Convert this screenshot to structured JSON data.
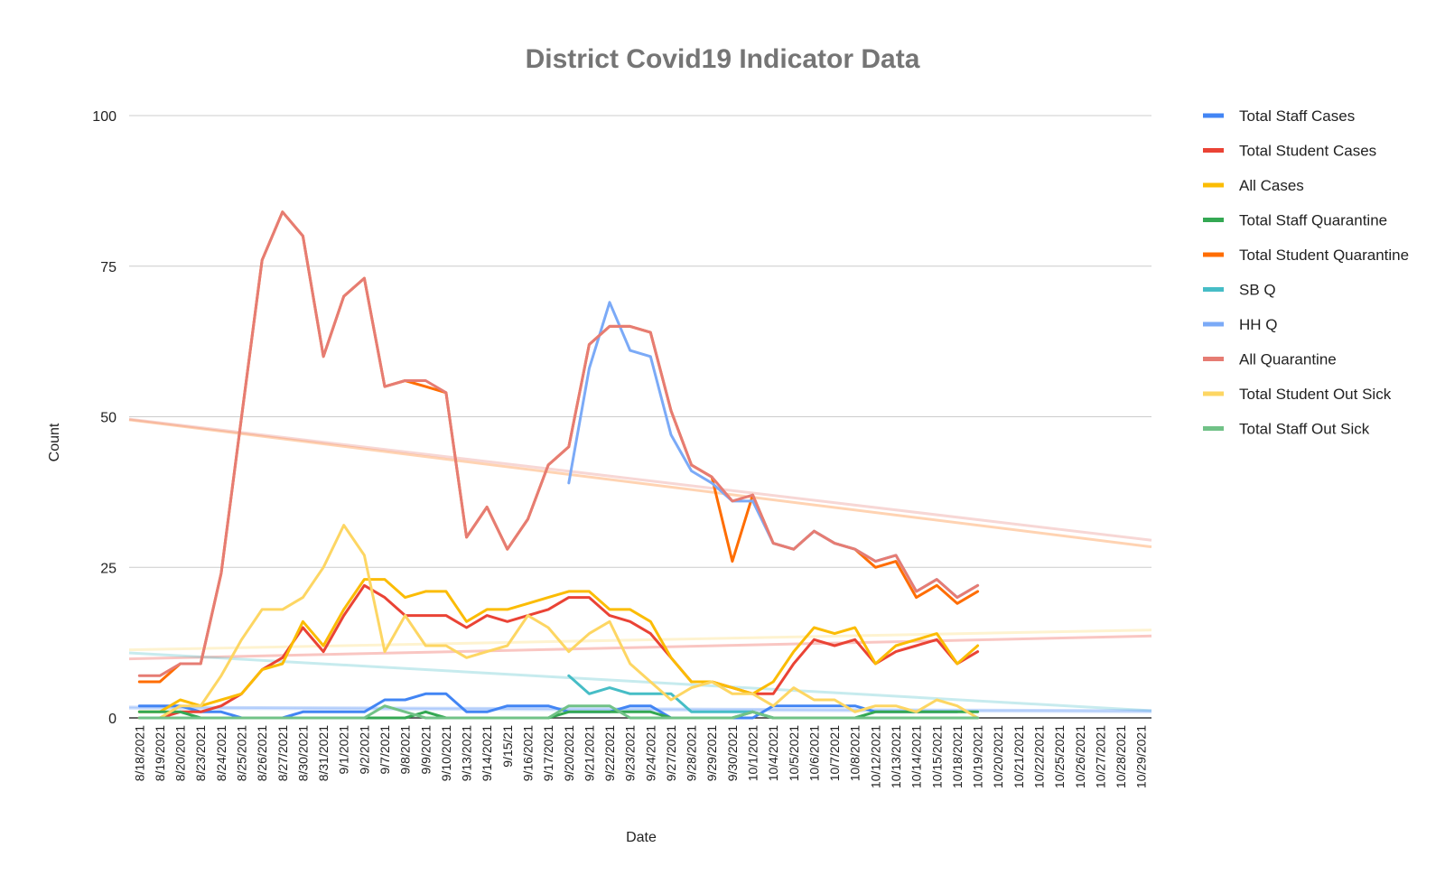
{
  "chart_data": {
    "type": "line",
    "title": "District Covid19 Indicator Data",
    "xlabel": "Date",
    "ylabel": "Count",
    "ylim": [
      0,
      100
    ],
    "yticks": [
      0,
      25,
      50,
      75,
      100
    ],
    "grid": true,
    "legend_position": "right",
    "categories": [
      "8/18/2021",
      "8/19/2021",
      "8/20/2021",
      "8/23/2021",
      "8/24/2021",
      "8/25/2021",
      "8/26/2021",
      "8/27/2021",
      "8/30/2021",
      "8/31/2021",
      "9/1/2021",
      "9/2/2021",
      "9/7/2021",
      "9/8/2021",
      "9/9/2021",
      "9/10/2021",
      "9/13/2021",
      "9/14/2021",
      "9/15/21",
      "9/16/2021",
      "9/17/2021",
      "9/20/2021",
      "9/21/2021",
      "9/22/2021",
      "9/23/2021",
      "9/24/2021",
      "9/27/2021",
      "9/28/2021",
      "9/29/2021",
      "9/30/2021",
      "10/1/2021",
      "10/4/2021",
      "10/5/2021",
      "10/6/2021",
      "10/7/2021",
      "10/8/2021",
      "10/12/2021",
      "10/13/2021",
      "10/14/2021",
      "10/15/2021",
      "10/18/2021",
      "10/19/2021",
      "10/20/2021",
      "10/21/2021",
      "10/22/2021",
      "10/25/2021",
      "10/26/2021",
      "10/27/2021",
      "10/28/2021",
      "10/29/2021"
    ],
    "series": [
      {
        "name": "Total Staff Cases",
        "color": "#4285f4",
        "values": [
          2,
          2,
          2,
          1,
          1,
          0,
          0,
          0,
          1,
          1,
          1,
          1,
          3,
          3,
          4,
          4,
          1,
          1,
          2,
          2,
          2,
          1,
          1,
          1,
          2,
          2,
          0,
          0,
          0,
          0,
          0,
          2,
          2,
          2,
          2,
          2,
          1,
          1,
          1,
          1,
          1,
          null,
          null,
          null,
          null,
          null,
          null,
          null,
          null,
          null
        ]
      },
      {
        "name": "Total Student Cases",
        "color": "#ea4335",
        "values": [
          0,
          0,
          1,
          1,
          2,
          4,
          8,
          10,
          15,
          11,
          17,
          22,
          20,
          17,
          17,
          17,
          15,
          17,
          16,
          17,
          18,
          20,
          20,
          17,
          16,
          14,
          10,
          6,
          6,
          5,
          4,
          4,
          9,
          13,
          12,
          13,
          9,
          11,
          12,
          13,
          9,
          11,
          null,
          null,
          null,
          null,
          null,
          null,
          null,
          null
        ]
      },
      {
        "name": "All Cases",
        "color": "#fbbc04",
        "values": [
          1,
          1,
          3,
          2,
          3,
          4,
          8,
          9,
          16,
          12,
          18,
          23,
          23,
          20,
          21,
          21,
          16,
          18,
          18,
          19,
          20,
          21,
          21,
          18,
          18,
          16,
          10,
          6,
          6,
          5,
          4,
          6,
          11,
          15,
          14,
          15,
          9,
          12,
          13,
          14,
          9,
          12,
          null,
          null,
          null,
          null,
          null,
          null,
          null,
          null
        ]
      },
      {
        "name": "Total Staff Quarantine",
        "color": "#34a853",
        "values": [
          1,
          1,
          1,
          0,
          0,
          0,
          0,
          0,
          0,
          0,
          0,
          0,
          0,
          0,
          1,
          0,
          0,
          0,
          0,
          0,
          0,
          1,
          1,
          1,
          1,
          1,
          0,
          0,
          0,
          0,
          1,
          0,
          0,
          0,
          0,
          0,
          1,
          1,
          1,
          1,
          1,
          1,
          null,
          null,
          null,
          null,
          null,
          null,
          null,
          null
        ]
      },
      {
        "name": "Total Student Quarantine",
        "color": "#ff6d01",
        "values": [
          6,
          6,
          9,
          9,
          24,
          50,
          76,
          84,
          80,
          60,
          70,
          73,
          55,
          56,
          55,
          54,
          30,
          35,
          28,
          33,
          42,
          45,
          62,
          65,
          65,
          64,
          51,
          42,
          40,
          26,
          37,
          29,
          28,
          31,
          29,
          28,
          25,
          26,
          20,
          22,
          19,
          21,
          null,
          null,
          null,
          null,
          null,
          null,
          null,
          null
        ]
      },
      {
        "name": "SB Q",
        "color": "#46bdc6",
        "values": [
          null,
          null,
          null,
          null,
          null,
          null,
          null,
          null,
          null,
          null,
          null,
          null,
          null,
          null,
          null,
          null,
          null,
          null,
          null,
          null,
          null,
          7,
          4,
          5,
          4,
          4,
          4,
          1,
          1,
          1,
          1,
          0,
          0,
          0,
          0,
          0,
          0,
          0,
          0,
          0,
          0,
          0,
          null,
          null,
          null,
          null,
          null,
          null,
          null,
          null
        ]
      },
      {
        "name": "HH Q",
        "color": "#7baaf7",
        "values": [
          null,
          null,
          null,
          null,
          null,
          null,
          null,
          null,
          null,
          null,
          null,
          null,
          null,
          null,
          null,
          null,
          null,
          null,
          null,
          null,
          null,
          39,
          58,
          69,
          61,
          60,
          47,
          41,
          39,
          36,
          36,
          29,
          28,
          31,
          29,
          28,
          26,
          27,
          21,
          23,
          20,
          22,
          null,
          null,
          null,
          null,
          null,
          null,
          null,
          null
        ]
      },
      {
        "name": "All Quarantine",
        "color": "#e67c73",
        "values": [
          7,
          7,
          9,
          9,
          24,
          50,
          76,
          84,
          80,
          60,
          70,
          73,
          55,
          56,
          56,
          54,
          30,
          35,
          28,
          33,
          42,
          45,
          62,
          65,
          65,
          64,
          51,
          42,
          40,
          36,
          37,
          29,
          28,
          31,
          29,
          28,
          26,
          27,
          21,
          23,
          20,
          22,
          null,
          null,
          null,
          null,
          null,
          null,
          null,
          null
        ]
      },
      {
        "name": "Total Student Out Sick",
        "color": "#fdd663",
        "values": [
          0,
          0,
          2,
          2,
          7,
          13,
          18,
          18,
          20,
          25,
          32,
          27,
          11,
          17,
          12,
          12,
          10,
          11,
          12,
          17,
          15,
          11,
          14,
          16,
          9,
          6,
          3,
          5,
          6,
          4,
          4,
          2,
          5,
          3,
          3,
          1,
          2,
          2,
          1,
          3,
          2,
          0,
          null,
          null,
          null,
          null,
          null,
          null,
          null,
          null
        ]
      },
      {
        "name": "Total Staff Out Sick",
        "color": "#71c287",
        "values": [
          0,
          0,
          0,
          0,
          0,
          0,
          0,
          0,
          0,
          0,
          0,
          0,
          2,
          1,
          0,
          0,
          0,
          0,
          0,
          0,
          0,
          2,
          2,
          2,
          0,
          0,
          0,
          0,
          0,
          0,
          1,
          0,
          0,
          0,
          0,
          0,
          0,
          0,
          0,
          0,
          0,
          0,
          null,
          null,
          null,
          null,
          null,
          null,
          null,
          null
        ]
      }
    ],
    "trendlines": [
      {
        "name": "trend-total-student-quarantine",
        "color": "#ff6d01",
        "y_start": 49.5,
        "y_end": 28.4
      },
      {
        "name": "trend-all-quarantine",
        "color": "#e67c73",
        "y_start": 49.6,
        "y_end": 29.5
      },
      {
        "name": "trend-total-student-out-sick",
        "color": "#fdd663",
        "y_start": 11.3,
        "y_end": 14.6
      },
      {
        "name": "trend-total-student-cases",
        "color": "#ea4335",
        "y_start": 9.8,
        "y_end": 13.6
      },
      {
        "name": "trend-sb-q",
        "color": "#46bdc6",
        "y_start": 10.8,
        "y_end": 1.2
      },
      {
        "name": "trend-total-staff-cases",
        "color": "#4285f4",
        "y_start": 1.8,
        "y_end": 1.2
      },
      {
        "name": "trend-hh-q",
        "color": "#7baaf7",
        "y_start": 1.6,
        "y_end": 1.0
      }
    ]
  }
}
